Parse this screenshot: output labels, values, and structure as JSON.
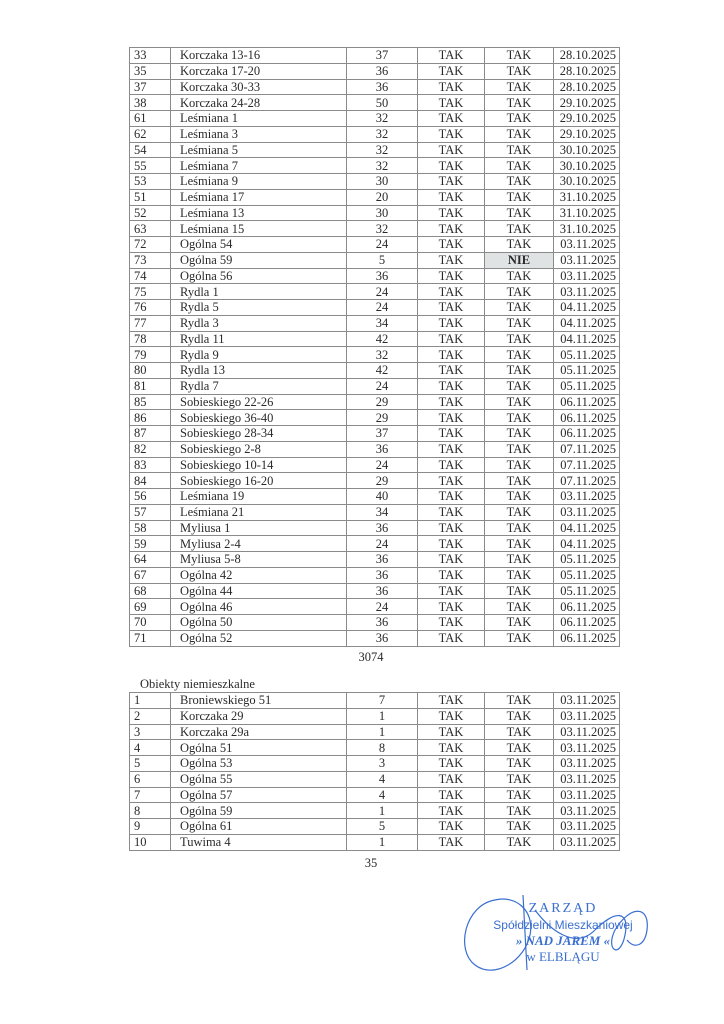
{
  "residential_table": {
    "rows": [
      [
        "33",
        "Korczaka 13-16",
        "37",
        "TAK",
        "TAK",
        "28.10.2025"
      ],
      [
        "35",
        "Korczaka 17-20",
        "36",
        "TAK",
        "TAK",
        "28.10.2025"
      ],
      [
        "37",
        "Korczaka 30-33",
        "36",
        "TAK",
        "TAK",
        "28.10.2025"
      ],
      [
        "38",
        "Korczaka 24-28",
        "50",
        "TAK",
        "TAK",
        "29.10.2025"
      ],
      [
        "61",
        "Leśmiana 1",
        "32",
        "TAK",
        "TAK",
        "29.10.2025"
      ],
      [
        "62",
        "Leśmiana 3",
        "32",
        "TAK",
        "TAK",
        "29.10.2025"
      ],
      [
        "54",
        "Leśmiana 5",
        "32",
        "TAK",
        "TAK",
        "30.10.2025"
      ],
      [
        "55",
        "Leśmiana 7",
        "32",
        "TAK",
        "TAK",
        "30.10.2025"
      ],
      [
        "53",
        "Leśmiana 9",
        "30",
        "TAK",
        "TAK",
        "30.10.2025"
      ],
      [
        "51",
        "Leśmiana 17",
        "20",
        "TAK",
        "TAK",
        "31.10.2025"
      ],
      [
        "52",
        "Leśmiana 13",
        "30",
        "TAK",
        "TAK",
        "31.10.2025"
      ],
      [
        "63",
        "Leśmiana 15",
        "32",
        "TAK",
        "TAK",
        "31.10.2025"
      ],
      [
        "72",
        "Ogólna 54",
        "24",
        "TAK",
        "TAK",
        "03.11.2025"
      ],
      [
        "73",
        "Ogólna 59",
        "5",
        "TAK",
        "NIE",
        "03.11.2025"
      ],
      [
        "74",
        "Ogólna 56",
        "36",
        "TAK",
        "TAK",
        "03.11.2025"
      ],
      [
        "75",
        "Rydla 1",
        "24",
        "TAK",
        "TAK",
        "03.11.2025"
      ],
      [
        "76",
        "Rydla 5",
        "24",
        "TAK",
        "TAK",
        "04.11.2025"
      ],
      [
        "77",
        "Rydla 3",
        "34",
        "TAK",
        "TAK",
        "04.11.2025"
      ],
      [
        "78",
        "Rydla 11",
        "42",
        "TAK",
        "TAK",
        "04.11.2025"
      ],
      [
        "79",
        "Rydla 9",
        "32",
        "TAK",
        "TAK",
        "05.11.2025"
      ],
      [
        "80",
        "Rydla 13",
        "42",
        "TAK",
        "TAK",
        "05.11.2025"
      ],
      [
        "81",
        "Rydla 7",
        "24",
        "TAK",
        "TAK",
        "05.11.2025"
      ],
      [
        "85",
        "Sobieskiego 22-26",
        "29",
        "TAK",
        "TAK",
        "06.11.2025"
      ],
      [
        "86",
        "Sobieskiego 36-40",
        "29",
        "TAK",
        "TAK",
        "06.11.2025"
      ],
      [
        "87",
        "Sobieskiego 28-34",
        "37",
        "TAK",
        "TAK",
        "06.11.2025"
      ],
      [
        "82",
        "Sobieskiego 2-8",
        "36",
        "TAK",
        "TAK",
        "07.11.2025"
      ],
      [
        "83",
        "Sobieskiego 10-14",
        "24",
        "TAK",
        "TAK",
        "07.11.2025"
      ],
      [
        "84",
        "Sobieskiego 16-20",
        "29",
        "TAK",
        "TAK",
        "07.11.2025"
      ],
      [
        "56",
        "Leśmiana 19",
        "40",
        "TAK",
        "TAK",
        "03.11.2025"
      ],
      [
        "57",
        "Leśmiana 21",
        "34",
        "TAK",
        "TAK",
        "03.11.2025"
      ],
      [
        "58",
        "Myliusa 1",
        "36",
        "TAK",
        "TAK",
        "04.11.2025"
      ],
      [
        "59",
        "Myliusa 2-4",
        "24",
        "TAK",
        "TAK",
        "04.11.2025"
      ],
      [
        "64",
        "Myliusa 5-8",
        "36",
        "TAK",
        "TAK",
        "05.11.2025"
      ],
      [
        "67",
        "Ogólna 42",
        "36",
        "TAK",
        "TAK",
        "05.11.2025"
      ],
      [
        "68",
        "Ogólna 44",
        "36",
        "TAK",
        "TAK",
        "05.11.2025"
      ],
      [
        "69",
        "Ogólna 46",
        "24",
        "TAK",
        "TAK",
        "06.11.2025"
      ],
      [
        "70",
        "Ogólna 50",
        "36",
        "TAK",
        "TAK",
        "06.11.2025"
      ],
      [
        "71",
        "Ogólna 52",
        "36",
        "TAK",
        "TAK",
        "06.11.2025"
      ]
    ],
    "total": "3074"
  },
  "nonresidential_table": {
    "caption": "Obiekty niemieszkalne",
    "rows": [
      [
        "1",
        "Broniewskiego 51",
        "7",
        "TAK",
        "TAK",
        "03.11.2025"
      ],
      [
        "2",
        "Korczaka 29",
        "1",
        "TAK",
        "TAK",
        "03.11.2025"
      ],
      [
        "3",
        "Korczaka 29a",
        "1",
        "TAK",
        "TAK",
        "03.11.2025"
      ],
      [
        "4",
        "Ogólna 51",
        "8",
        "TAK",
        "TAK",
        "03.11.2025"
      ],
      [
        "5",
        "Ogólna 53",
        "3",
        "TAK",
        "TAK",
        "03.11.2025"
      ],
      [
        "6",
        "Ogólna 55",
        "4",
        "TAK",
        "TAK",
        "03.11.2025"
      ],
      [
        "7",
        "Ogólna 57",
        "4",
        "TAK",
        "TAK",
        "03.11.2025"
      ],
      [
        "8",
        "Ogólna 59",
        "1",
        "TAK",
        "TAK",
        "03.11.2025"
      ],
      [
        "9",
        "Ogólna 61",
        "5",
        "TAK",
        "TAK",
        "03.11.2025"
      ],
      [
        "10",
        "Tuwima 4",
        "1",
        "TAK",
        "TAK",
        "03.11.2025"
      ]
    ],
    "total": "35"
  },
  "stamp": {
    "lines": [
      "ZARZĄD",
      "Spółdzielni Mieszkaniowej",
      "» NAD JAREM «",
      "w ELBLĄGU"
    ],
    "color": "#3a6fd0"
  },
  "highlight_color": "#dfe3e4"
}
